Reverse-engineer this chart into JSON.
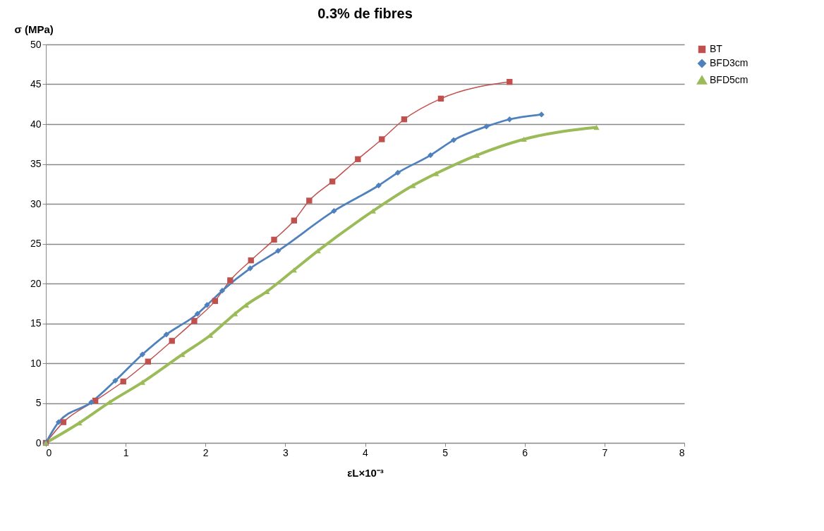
{
  "chart_data": {
    "type": "line",
    "title": "0.3% de fibres",
    "xlabel": "εL×10⁻³",
    "ylabel": "σ (MPa)",
    "xlim": [
      0,
      8
    ],
    "xticks": [
      0,
      1,
      2,
      3,
      4,
      5,
      6,
      7,
      8
    ],
    "ylim": [
      0,
      50
    ],
    "yticks": [
      0,
      5,
      10,
      15,
      20,
      25,
      30,
      35,
      40,
      45,
      50
    ],
    "grid": "y",
    "legend": "right",
    "line_style": "solid",
    "series": [
      {
        "name": "BT",
        "color": "#c0504d",
        "marker": "square",
        "x": [
          0,
          0.22,
          0.62,
          0.97,
          1.28,
          1.58,
          1.86,
          2.12,
          2.31,
          2.57,
          2.86,
          3.11,
          3.3,
          3.59,
          3.91,
          4.21,
          4.49,
          4.95,
          5.81
        ],
        "values": [
          0,
          2.6,
          5.3,
          7.7,
          10.2,
          12.8,
          15.3,
          17.8,
          20.4,
          22.9,
          25.5,
          27.9,
          30.4,
          32.8,
          35.6,
          38.1,
          40.6,
          43.2,
          45.3
        ]
      },
      {
        "name": "BFD3cm",
        "color": "#4f81bd",
        "marker": "diamond",
        "x": [
          0,
          0.16,
          0.57,
          0.87,
          1.21,
          1.51,
          1.9,
          2.02,
          2.21,
          2.56,
          2.91,
          3.61,
          4.17,
          4.41,
          4.82,
          5.11,
          5.52,
          5.81,
          6.21
        ],
        "values": [
          0,
          2.6,
          5.1,
          7.8,
          11.1,
          13.6,
          16.2,
          17.3,
          19.1,
          21.9,
          24.1,
          29.1,
          32.3,
          33.9,
          36.1,
          38.0,
          39.7,
          40.6,
          41.2
        ]
      },
      {
        "name": "BFD5cm",
        "color": "#9bbb59",
        "marker": "triangle",
        "x": [
          0,
          0.42,
          0.8,
          1.21,
          1.71,
          2.06,
          2.37,
          2.51,
          2.77,
          3.11,
          3.41,
          4.1,
          4.6,
          4.89,
          5.4,
          5.99,
          6.9
        ],
        "values": [
          0,
          2.5,
          5.1,
          7.6,
          11.1,
          13.5,
          16.2,
          17.3,
          19.0,
          21.7,
          24.1,
          29.1,
          32.3,
          33.8,
          36.1,
          38.1,
          39.6
        ]
      }
    ]
  }
}
